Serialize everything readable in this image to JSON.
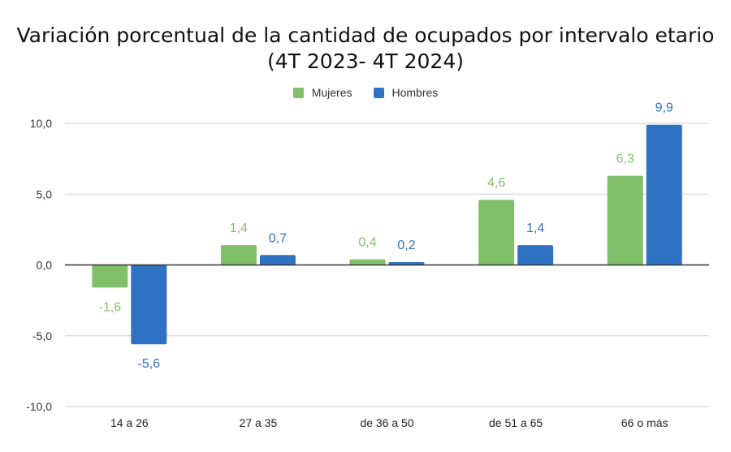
{
  "chart_data": {
    "type": "bar",
    "title_line1": "Variación porcentual de la cantidad de ocupados por intervalo etario",
    "title_line2": "(4T 2023- 4T 2024)",
    "categories": [
      "14 a 26",
      "27 a 35",
      "de 36 a 50",
      "de 51 a 65",
      "66 o más"
    ],
    "series": [
      {
        "name": "Mujeres",
        "color": "#82bf6a",
        "values": [
          -1.6,
          1.4,
          0.4,
          4.6,
          6.3
        ],
        "labels": [
          "-1,6",
          "1,4",
          "0,4",
          "4,6",
          "6,3"
        ]
      },
      {
        "name": "Hombres",
        "color": "#2f72c4",
        "values": [
          -5.6,
          0.7,
          0.2,
          1.4,
          9.9
        ],
        "labels": [
          "-5,6",
          "0,7",
          "0,2",
          "1,4",
          "9,9"
        ]
      }
    ],
    "ylim": [
      -10,
      10
    ],
    "yticks": [
      10,
      5,
      0,
      -5,
      -10
    ],
    "ytick_labels": [
      "10,0",
      "5,0",
      "0,0",
      "-5,0",
      "-10,0"
    ],
    "grid": true,
    "legend_position": "top-center"
  }
}
